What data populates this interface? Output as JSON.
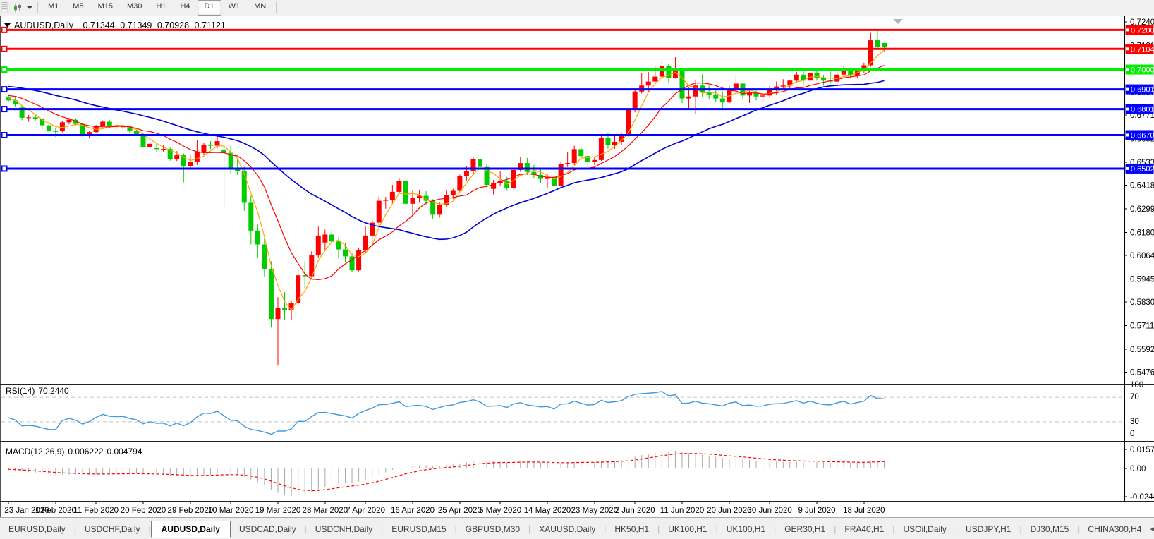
{
  "toolbar": {
    "timeframes": [
      "M1",
      "M5",
      "M15",
      "M30",
      "H1",
      "H4",
      "D1",
      "W1",
      "MN"
    ],
    "active_timeframe": "D1"
  },
  "rsi_panel": {
    "name": "RSI(14)",
    "value": "70.2440",
    "axis_labels": [
      "100",
      "70",
      "30",
      "0"
    ],
    "levels": [
      70,
      30
    ],
    "line_color": "#3E9ADE"
  },
  "macd_panel": {
    "name": "MACD(12,26,9)",
    "value_main": "0.006222",
    "value_signal": "0.004794",
    "axis_labels": [
      "0.015741",
      "0.00",
      "-0.024412"
    ],
    "histogram_color": "#a9a9a9",
    "signal_color": "#ff0000"
  },
  "tabs": {
    "items": [
      "EURUSD,Daily",
      "USDCHF,Daily",
      "AUDUSD,Daily",
      "USDCAD,Daily",
      "USDCNH,Daily",
      "EURUSD,M15",
      "GBPUSD,M30",
      "XAUUSD,Daily",
      "HK50,H1",
      "UK100,H1",
      "UK100,H1",
      "GER30,H1",
      "FRA40,H1",
      "USOil,Daily",
      "USDJPY,H1",
      "DJ30,M15",
      "CHINA300,H4"
    ],
    "active": "AUDUSD,Daily",
    "scroll_left": "◂",
    "scroll_right": "▸"
  },
  "chart_data": {
    "type": "candlestick",
    "title": {
      "symbol": "AUDUSD,Daily",
      "open": "0.71344",
      "high": "0.71349",
      "low": "0.70928",
      "close": "0.71121"
    },
    "price_axis_ticks": [
      "0.72405",
      "0.71215",
      "0.70060",
      "0.68870",
      "0.67715",
      "0.66525",
      "0.65335",
      "0.64180",
      "0.62990",
      "0.61800",
      "0.60645",
      "0.59455",
      "0.58300",
      "0.57110",
      "0.55920",
      "0.54765"
    ],
    "hlines": [
      {
        "price": 0.72001,
        "label": "0.72001",
        "color": "#ff0000"
      },
      {
        "price": 0.71046,
        "label": "0.71046",
        "color": "#ff0000"
      },
      {
        "price": 0.70007,
        "label": "0.70007",
        "color": "#00ee00"
      },
      {
        "price": 0.6901,
        "label": "0.69010",
        "color": "#0000ff"
      },
      {
        "price": 0.68017,
        "label": "0.68017",
        "color": "#0000ff"
      },
      {
        "price": 0.66706,
        "label": "0.66706",
        "color": "#0000ff"
      },
      {
        "price": 0.6502,
        "label": "0.65020",
        "color": "#0000ff"
      }
    ],
    "date_axis": [
      {
        "label": "23 Jan 2020",
        "bar": 0
      },
      {
        "label": "1 Feb 2020",
        "bar": 7
      },
      {
        "label": "11 Feb 2020",
        "bar": 13
      },
      {
        "label": "20 Feb 2020",
        "bar": 20
      },
      {
        "label": "29 Feb 2020",
        "bar": 27
      },
      {
        "label": "10 Mar 2020",
        "bar": 33
      },
      {
        "label": "19 Mar 2020",
        "bar": 40
      },
      {
        "label": "28 Mar 2020",
        "bar": 47
      },
      {
        "label": "7 Apr 2020",
        "bar": 53
      },
      {
        "label": "16 Apr 2020",
        "bar": 60
      },
      {
        "label": "25 Apr 2020",
        "bar": 67
      },
      {
        "label": "5 May 2020",
        "bar": 73
      },
      {
        "label": "14 May 2020",
        "bar": 80
      },
      {
        "label": "23 May 2020",
        "bar": 87
      },
      {
        "label": "2 Jun 2020",
        "bar": 93
      },
      {
        "label": "11 Jun 2020",
        "bar": 100
      },
      {
        "label": "20 Jun 2020",
        "bar": 107
      },
      {
        "label": "30 Jun 2020",
        "bar": 113
      },
      {
        "label": "9 Jul 2020",
        "bar": 120
      },
      {
        "label": "18 Jul 2020",
        "bar": 127
      }
    ],
    "colors": {
      "bull": "#ff0000",
      "bear": "#00cc00",
      "ma_fast": "#ffa500",
      "ma_mid": "#ff0000",
      "ma_slow": "#0000cc"
    },
    "moving_averages": [
      {
        "period": 4,
        "color": "#ffa500",
        "width": 1.2
      },
      {
        "period": 10,
        "color": "#ff0000",
        "width": 1.2
      },
      {
        "period": 30,
        "color": "#0000cc",
        "width": 1.6
      }
    ],
    "indicators": {
      "rsi": {
        "period": 14,
        "current": "70.2440"
      },
      "macd": {
        "fast": 12,
        "slow": 26,
        "signal": 9,
        "current_main": "0.006222",
        "current_signal": "0.004794"
      }
    },
    "ma_warmup_closes": [
      0.68,
      0.6812,
      0.6825,
      0.6838,
      0.685,
      0.686,
      0.6852,
      0.6843,
      0.6835,
      0.6828,
      0.682,
      0.6835,
      0.6848,
      0.686,
      0.6868,
      0.6875,
      0.6885,
      0.6895,
      0.6905,
      0.6898,
      0.691,
      0.6922,
      0.6915,
      0.6928,
      0.694,
      0.6932,
      0.6945,
      0.6955,
      0.6962,
      0.697,
      0.6978,
      0.6985,
      0.6975,
      0.6962,
      0.695,
      0.6938,
      0.6925,
      0.6912,
      0.69,
      0.689,
      0.6878,
      0.6868,
      0.6858,
      0.6905,
      0.6895,
      0.6882,
      0.687,
      0.6858,
      0.6868,
      0.6848
    ],
    "candles": [
      [
        0.686,
        0.6878,
        0.684,
        0.6845
      ],
      [
        0.6845,
        0.686,
        0.6815,
        0.6827
      ],
      [
        0.681,
        0.682,
        0.6745,
        0.6758
      ],
      [
        0.6758,
        0.6772,
        0.6738,
        0.676
      ],
      [
        0.676,
        0.6775,
        0.6742,
        0.6751
      ],
      [
        0.6751,
        0.6758,
        0.67,
        0.672
      ],
      [
        0.672,
        0.6738,
        0.6682,
        0.6691
      ],
      [
        0.6691,
        0.6705,
        0.6662,
        0.669
      ],
      [
        0.669,
        0.674,
        0.6685,
        0.6735
      ],
      [
        0.6735,
        0.6758,
        0.6725,
        0.6748
      ],
      [
        0.6748,
        0.6755,
        0.672,
        0.6727
      ],
      [
        0.6727,
        0.6732,
        0.6662,
        0.667
      ],
      [
        0.667,
        0.6692,
        0.6658,
        0.6686
      ],
      [
        0.6686,
        0.6722,
        0.668,
        0.6715
      ],
      [
        0.6715,
        0.6745,
        0.671,
        0.6738
      ],
      [
        0.6738,
        0.6748,
        0.6705,
        0.6716
      ],
      [
        0.6716,
        0.6728,
        0.67,
        0.6712
      ],
      [
        0.6712,
        0.6725,
        0.67,
        0.6714
      ],
      [
        0.6714,
        0.672,
        0.668,
        0.669
      ],
      [
        0.669,
        0.67,
        0.6665,
        0.6675
      ],
      [
        0.6675,
        0.668,
        0.6608,
        0.6612
      ],
      [
        0.6612,
        0.664,
        0.6585,
        0.6627
      ],
      [
        0.6605,
        0.6632,
        0.6582,
        0.66
      ],
      [
        0.66,
        0.6622,
        0.6585,
        0.6601
      ],
      [
        0.6601,
        0.661,
        0.6542,
        0.655
      ],
      [
        0.655,
        0.659,
        0.654,
        0.6569
      ],
      [
        0.6569,
        0.6578,
        0.6433,
        0.6515
      ],
      [
        0.6515,
        0.657,
        0.6505,
        0.6537
      ],
      [
        0.6537,
        0.6645,
        0.652,
        0.6585
      ],
      [
        0.6585,
        0.663,
        0.657,
        0.6623
      ],
      [
        0.6623,
        0.664,
        0.66,
        0.6617
      ],
      [
        0.6617,
        0.667,
        0.6605,
        0.664
      ],
      [
        0.6598,
        0.662,
        0.6313,
        0.6582
      ],
      [
        0.6582,
        0.6618,
        0.6475,
        0.65
      ],
      [
        0.65,
        0.6555,
        0.647,
        0.649
      ],
      [
        0.649,
        0.651,
        0.629,
        0.633
      ],
      [
        0.633,
        0.6365,
        0.612,
        0.619
      ],
      [
        0.619,
        0.6225,
        0.6055,
        0.612
      ],
      [
        0.612,
        0.615,
        0.5955,
        0.5995
      ],
      [
        0.5995,
        0.6035,
        0.5702,
        0.5745
      ],
      [
        0.5745,
        0.5855,
        0.551,
        0.58
      ],
      [
        0.58,
        0.588,
        0.574,
        0.5788
      ],
      [
        0.5788,
        0.5838,
        0.574,
        0.5825
      ],
      [
        0.5825,
        0.599,
        0.581,
        0.5965
      ],
      [
        0.5965,
        0.6035,
        0.59,
        0.596
      ],
      [
        0.596,
        0.6085,
        0.5945,
        0.6065
      ],
      [
        0.6065,
        0.621,
        0.6052,
        0.6165
      ],
      [
        0.613,
        0.6195,
        0.609,
        0.617
      ],
      [
        0.617,
        0.62,
        0.611,
        0.6135
      ],
      [
        0.6135,
        0.6155,
        0.605,
        0.6095
      ],
      [
        0.6095,
        0.6128,
        0.603,
        0.606
      ],
      [
        0.606,
        0.6078,
        0.5982,
        0.599
      ],
      [
        0.599,
        0.6105,
        0.5985,
        0.609
      ],
      [
        0.609,
        0.621,
        0.6075,
        0.6165
      ],
      [
        0.6165,
        0.6245,
        0.6135,
        0.623
      ],
      [
        0.623,
        0.6365,
        0.6215,
        0.634
      ],
      [
        0.634,
        0.636,
        0.63,
        0.6345
      ],
      [
        0.6345,
        0.642,
        0.6325,
        0.6385
      ],
      [
        0.6385,
        0.6455,
        0.6375,
        0.644
      ],
      [
        0.644,
        0.6445,
        0.63,
        0.6325
      ],
      [
        0.6325,
        0.6395,
        0.6265,
        0.6355
      ],
      [
        0.6355,
        0.6395,
        0.633,
        0.6365
      ],
      [
        0.6365,
        0.6388,
        0.632,
        0.634
      ],
      [
        0.634,
        0.6348,
        0.625,
        0.627
      ],
      [
        0.627,
        0.6335,
        0.6255,
        0.632
      ],
      [
        0.632,
        0.6395,
        0.631,
        0.637
      ],
      [
        0.637,
        0.64,
        0.6348,
        0.639
      ],
      [
        0.639,
        0.6472,
        0.6385,
        0.6465
      ],
      [
        0.6465,
        0.6515,
        0.644,
        0.649
      ],
      [
        0.649,
        0.6562,
        0.647,
        0.655
      ],
      [
        0.655,
        0.657,
        0.649,
        0.651
      ],
      [
        0.651,
        0.6522,
        0.6402,
        0.642
      ],
      [
        0.64,
        0.6445,
        0.6372,
        0.643
      ],
      [
        0.643,
        0.649,
        0.6415,
        0.644
      ],
      [
        0.644,
        0.646,
        0.639,
        0.6405
      ],
      [
        0.6405,
        0.6505,
        0.6395,
        0.6495
      ],
      [
        0.6495,
        0.656,
        0.6485,
        0.653
      ],
      [
        0.653,
        0.6555,
        0.647,
        0.6485
      ],
      [
        0.6485,
        0.652,
        0.6455,
        0.647
      ],
      [
        0.647,
        0.65,
        0.643,
        0.645
      ],
      [
        0.645,
        0.6475,
        0.6402,
        0.646
      ],
      [
        0.646,
        0.6478,
        0.641,
        0.6415
      ],
      [
        0.6415,
        0.6535,
        0.6412,
        0.6525
      ],
      [
        0.6525,
        0.6585,
        0.651,
        0.653
      ],
      [
        0.653,
        0.6617,
        0.652,
        0.66
      ],
      [
        0.66,
        0.661,
        0.6552,
        0.6565
      ],
      [
        0.6565,
        0.6572,
        0.651,
        0.6535
      ],
      [
        0.6535,
        0.6562,
        0.652,
        0.6545
      ],
      [
        0.6545,
        0.6675,
        0.654,
        0.6655
      ],
      [
        0.6655,
        0.668,
        0.6602,
        0.662
      ],
      [
        0.662,
        0.6665,
        0.6602,
        0.6637
      ],
      [
        0.6637,
        0.6684,
        0.662,
        0.6665
      ],
      [
        0.6665,
        0.6815,
        0.666,
        0.6797
      ],
      [
        0.6797,
        0.69,
        0.6785,
        0.689
      ],
      [
        0.689,
        0.6985,
        0.688,
        0.692
      ],
      [
        0.692,
        0.6988,
        0.689,
        0.694
      ],
      [
        0.694,
        0.7015,
        0.693,
        0.6965
      ],
      [
        0.6965,
        0.7043,
        0.696,
        0.702
      ],
      [
        0.702,
        0.7028,
        0.6935,
        0.696
      ],
      [
        0.696,
        0.7063,
        0.6955,
        0.7
      ],
      [
        0.7,
        0.701,
        0.6832,
        0.6855
      ],
      [
        0.6855,
        0.691,
        0.68,
        0.6865
      ],
      [
        0.6865,
        0.6948,
        0.6775,
        0.692
      ],
      [
        0.692,
        0.6977,
        0.6865,
        0.6885
      ],
      [
        0.6885,
        0.692,
        0.6852,
        0.6875
      ],
      [
        0.6875,
        0.6895,
        0.6835,
        0.6855
      ],
      [
        0.6855,
        0.689,
        0.68,
        0.6835
      ],
      [
        0.6835,
        0.692,
        0.683,
        0.6905
      ],
      [
        0.6905,
        0.6975,
        0.689,
        0.693
      ],
      [
        0.693,
        0.6935,
        0.6855,
        0.687
      ],
      [
        0.687,
        0.6895,
        0.6832,
        0.6885
      ],
      [
        0.6885,
        0.69,
        0.6845,
        0.6865
      ],
      [
        0.6865,
        0.688,
        0.6832,
        0.687
      ],
      [
        0.687,
        0.692,
        0.6858,
        0.6905
      ],
      [
        0.6905,
        0.694,
        0.6875,
        0.6915
      ],
      [
        0.6915,
        0.6952,
        0.69,
        0.692
      ],
      [
        0.692,
        0.6945,
        0.6905,
        0.6945
      ],
      [
        0.6945,
        0.699,
        0.6935,
        0.6975
      ],
      [
        0.6975,
        0.6998,
        0.6925,
        0.6945
      ],
      [
        0.6945,
        0.699,
        0.694,
        0.6985
      ],
      [
        0.6985,
        0.6995,
        0.6945,
        0.696
      ],
      [
        0.696,
        0.697,
        0.692,
        0.6945
      ],
      [
        0.6945,
        0.699,
        0.693,
        0.694
      ],
      [
        0.694,
        0.699,
        0.692,
        0.6975
      ],
      [
        0.6975,
        0.702,
        0.6965,
        0.7
      ],
      [
        0.7,
        0.701,
        0.6955,
        0.697
      ],
      [
        0.697,
        0.7005,
        0.696,
        0.6995
      ],
      [
        0.6995,
        0.7035,
        0.6985,
        0.7022
      ],
      [
        0.7022,
        0.7185,
        0.7015,
        0.7148
      ],
      [
        0.715,
        0.7198,
        0.7108,
        0.7115
      ],
      [
        0.71344,
        0.71349,
        0.70928,
        0.71121
      ]
    ]
  }
}
